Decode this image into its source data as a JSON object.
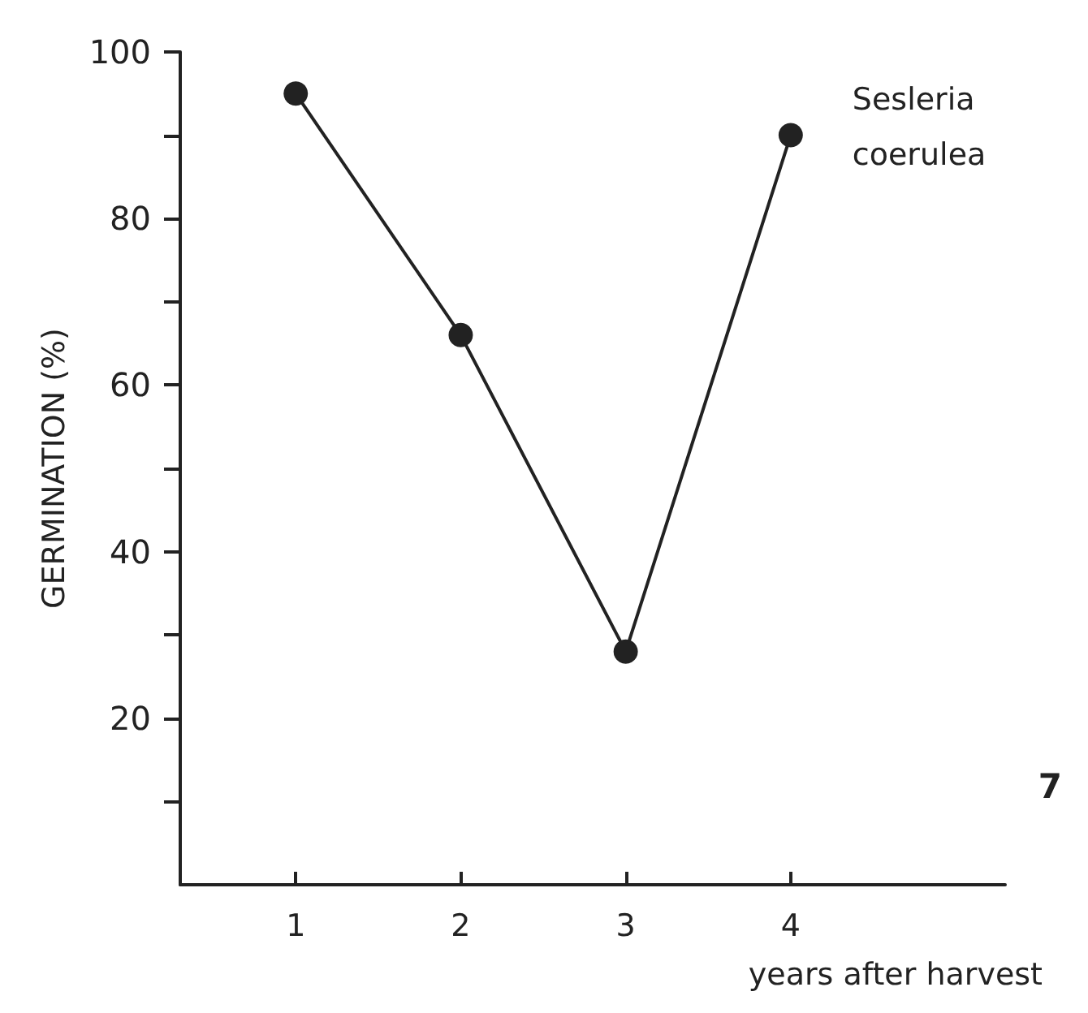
{
  "chart_data": {
    "type": "line",
    "ylabel": "GERMINATION (%)",
    "xlabel": "years after harvest",
    "x": [
      1,
      2,
      3,
      4
    ],
    "series": [
      {
        "name": "Sesleria coerulea",
        "color": "#222222",
        "values": [
          95,
          66,
          28,
          90
        ]
      }
    ],
    "xlim": [
      0.3,
      5.3
    ],
    "xticks": [
      1,
      2,
      3,
      4
    ],
    "ylim": [
      0,
      100
    ],
    "yticks": [
      {
        "value": 10,
        "label": null
      },
      20,
      {
        "value": 30,
        "label": null
      },
      40,
      {
        "value": 50,
        "label": null
      },
      60,
      {
        "value": 70,
        "label": null
      },
      80,
      {
        "value": 90,
        "label": null
      },
      100
    ],
    "marker": "circle",
    "line_style": "solid",
    "grid": false,
    "legend": false,
    "annotations": [
      "7"
    ]
  }
}
